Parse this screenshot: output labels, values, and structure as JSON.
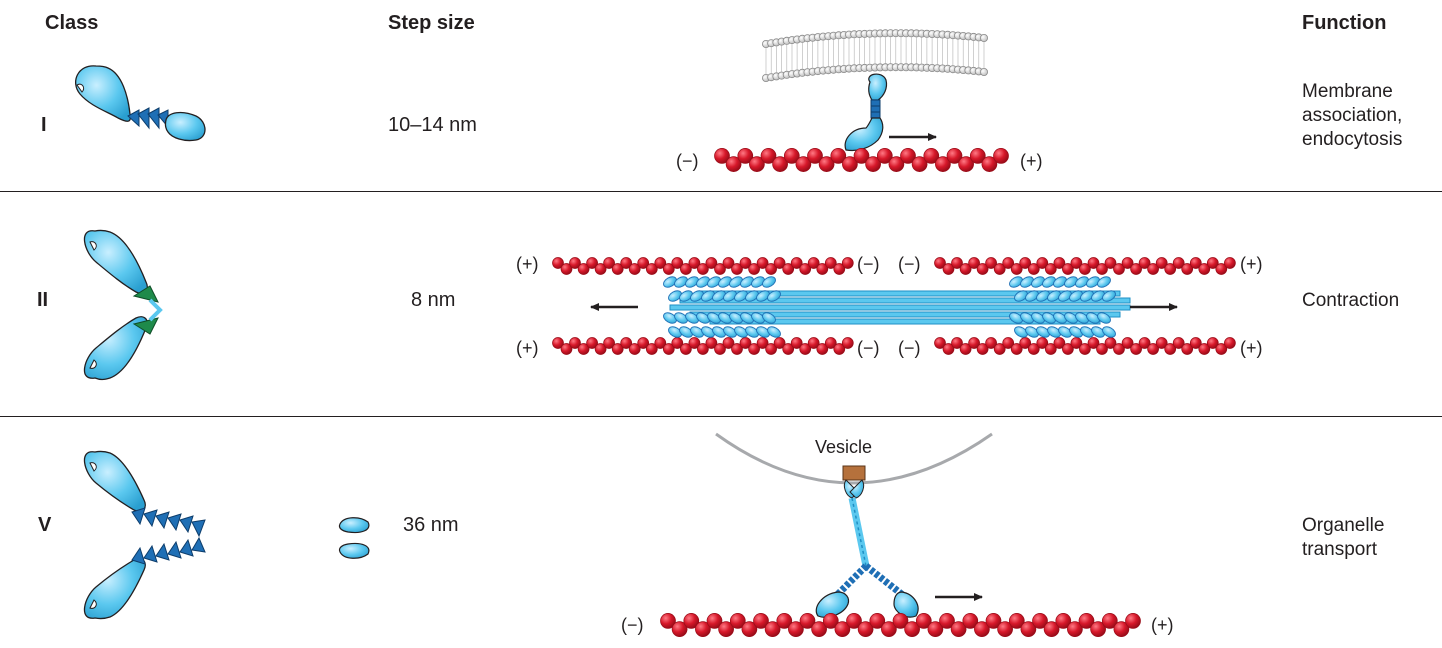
{
  "headers": {
    "class": "Class",
    "step_size": "Step size",
    "function": "Function"
  },
  "rows": [
    {
      "class": "I",
      "step_size": "10–14 nm",
      "function_lines": [
        "Membrane",
        "association,",
        "endocytosis"
      ]
    },
    {
      "class": "II",
      "step_size": "8 nm",
      "function_lines": [
        "Contraction"
      ]
    },
    {
      "class": "V",
      "step_size": "36 nm",
      "function_lines": [
        "Organelle",
        "transport"
      ]
    }
  ],
  "labels": {
    "minus_end": "(−)",
    "plus_end": "(+)",
    "vesicle": "Vesicle"
  },
  "colors": {
    "myosin_head": "#5bc8ef",
    "myosin_light": "#a9e3f8",
    "light_chain": "#1f6fb5",
    "light_chain_class2": "#1e8a4a",
    "actin": "#d7182a",
    "actin_dark": "#9a0c18",
    "membrane": "#c8c8c8",
    "vesicle_outline": "#a7a9ac",
    "cargo_adaptor": "#b5713c",
    "outline": "#231f20"
  }
}
